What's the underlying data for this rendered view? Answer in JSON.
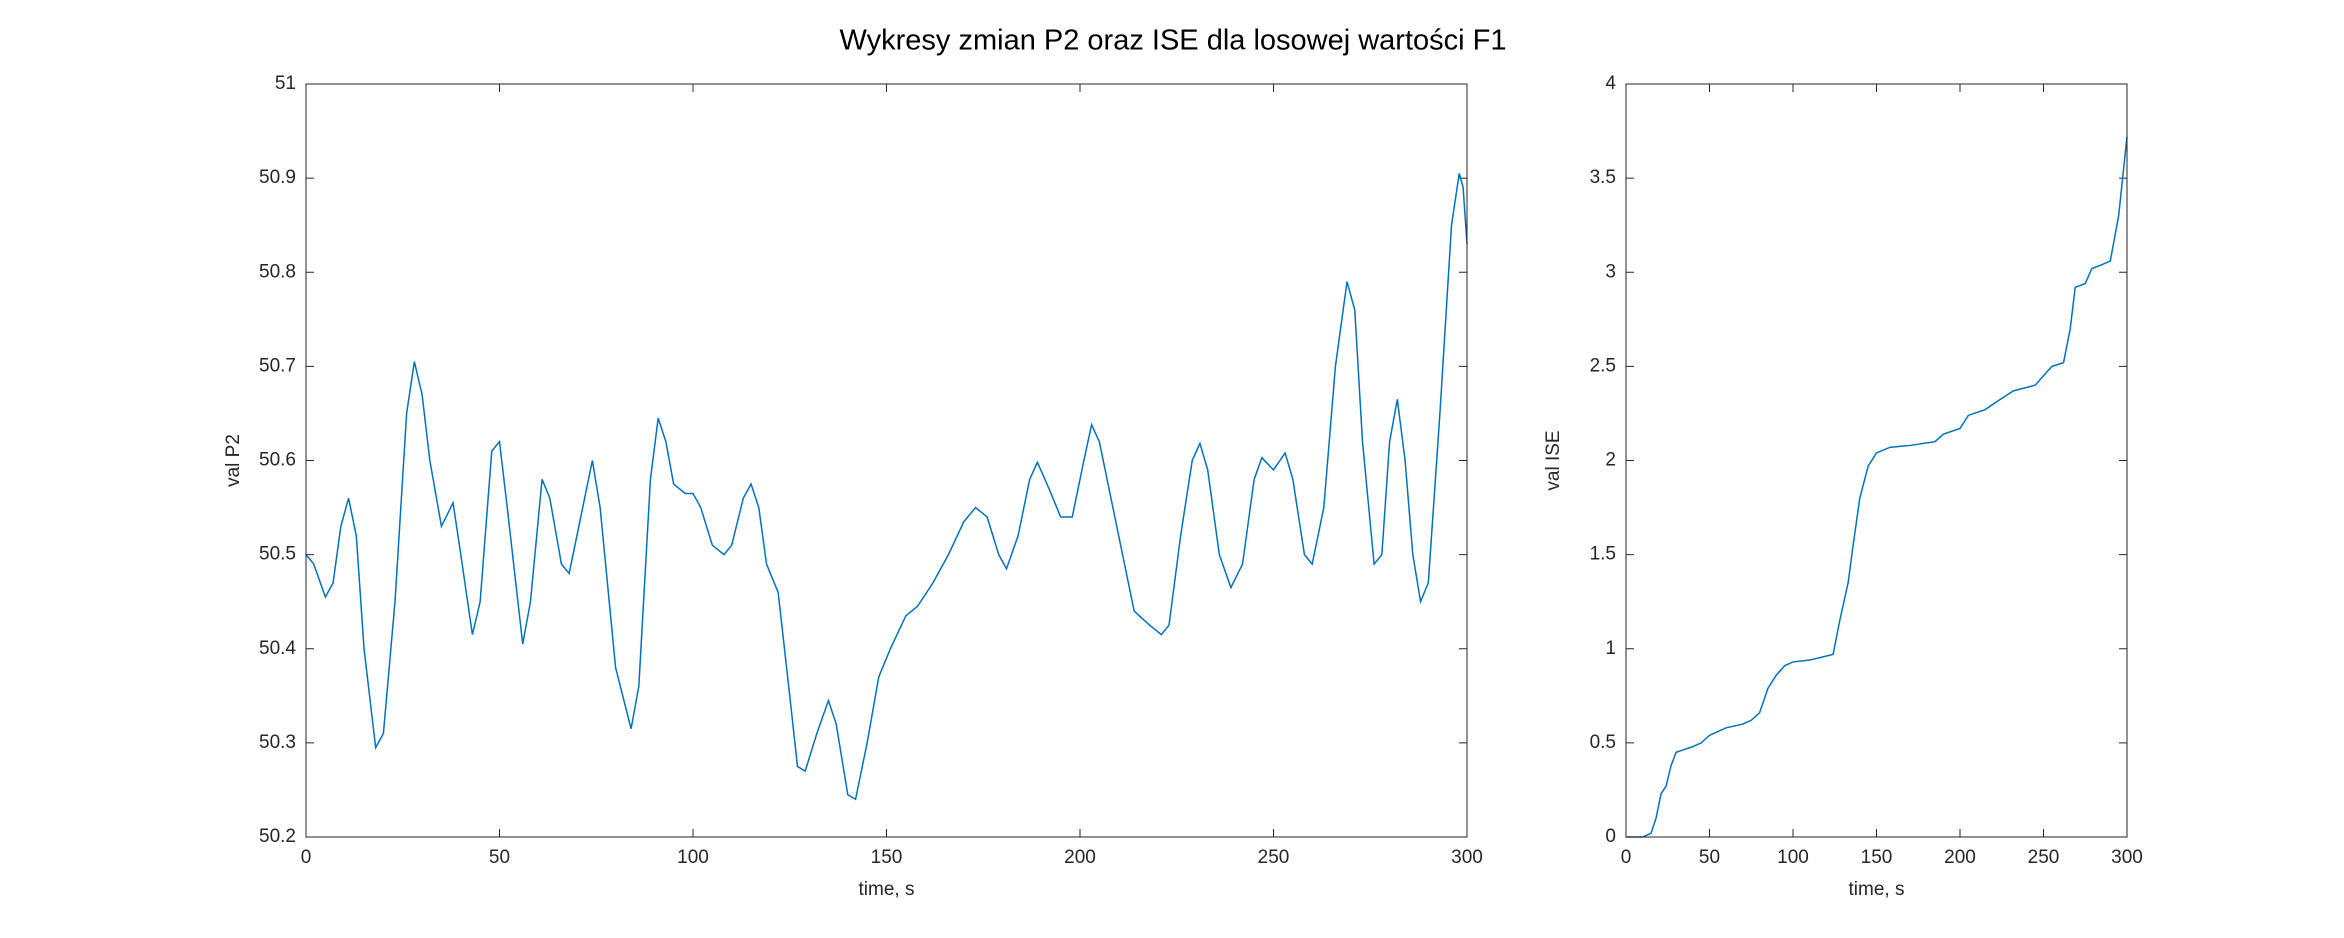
{
  "title": "Wykresy zmian P2 oraz ISE dla losowej wartości F1",
  "chart_data": [
    {
      "type": "line",
      "xlabel": "time, s",
      "ylabel": "val P2",
      "xlim": [
        0,
        300
      ],
      "ylim": [
        50.2,
        51
      ],
      "xticks": [
        0,
        50,
        100,
        150,
        200,
        250,
        300
      ],
      "yticks": [
        50.2,
        50.3,
        50.4,
        50.5,
        50.6,
        50.7,
        50.8,
        50.9,
        51
      ],
      "series": [
        {
          "color": "#0072bd",
          "x": [
            0,
            2,
            5,
            7,
            9,
            11,
            13,
            15,
            18,
            20,
            23,
            26,
            28,
            30,
            32,
            35,
            38,
            40,
            43,
            45,
            48,
            50,
            52,
            56,
            58,
            61,
            63,
            66,
            68,
            70,
            74,
            76,
            80,
            84,
            86,
            89,
            91,
            93,
            95,
            98,
            100,
            102,
            105,
            108,
            110,
            113,
            115,
            117,
            119,
            122,
            125,
            127,
            129,
            132,
            135,
            137,
            140,
            142,
            145,
            148,
            151,
            155,
            158,
            162,
            166,
            170,
            173,
            176,
            179,
            181,
            184,
            187,
            189,
            192,
            195,
            198,
            201,
            203,
            205,
            208,
            211,
            214,
            218,
            221,
            223,
            226,
            229,
            231,
            233,
            236,
            239,
            242,
            245,
            247,
            250,
            253,
            255,
            258,
            260,
            263,
            266,
            269,
            271,
            273,
            276,
            278,
            280,
            282,
            284,
            286,
            288,
            290,
            293,
            296,
            298,
            299,
            300
          ],
          "values": [
            50.5,
            50.49,
            50.455,
            50.47,
            50.53,
            50.56,
            50.52,
            50.4,
            50.295,
            50.31,
            50.45,
            50.65,
            50.705,
            50.67,
            50.6,
            50.53,
            50.555,
            50.5,
            50.415,
            50.45,
            50.61,
            50.62,
            50.55,
            50.405,
            50.45,
            50.58,
            50.56,
            50.49,
            50.48,
            50.52,
            50.6,
            50.55,
            50.38,
            50.315,
            50.36,
            50.58,
            50.645,
            50.62,
            50.575,
            50.565,
            50.565,
            50.55,
            50.51,
            50.5,
            50.51,
            50.56,
            50.575,
            50.55,
            50.49,
            50.46,
            50.35,
            50.275,
            50.27,
            50.31,
            50.345,
            50.32,
            50.245,
            50.24,
            50.3,
            50.37,
            50.4,
            50.435,
            50.445,
            50.47,
            50.5,
            50.535,
            50.55,
            50.54,
            50.5,
            50.485,
            50.52,
            50.58,
            50.598,
            50.57,
            50.54,
            50.54,
            50.6,
            50.638,
            50.62,
            50.56,
            50.5,
            50.44,
            50.425,
            50.415,
            50.425,
            50.52,
            50.6,
            50.618,
            50.59,
            50.5,
            50.465,
            50.49,
            50.58,
            50.603,
            50.59,
            50.608,
            50.58,
            50.5,
            50.49,
            50.55,
            50.7,
            50.79,
            50.76,
            50.62,
            50.49,
            50.5,
            50.62,
            50.665,
            50.6,
            50.5,
            50.45,
            50.47,
            50.65,
            50.85,
            50.905,
            50.89,
            50.83
          ]
        }
      ]
    },
    {
      "type": "line",
      "xlabel": "time, s",
      "ylabel": "val ISE",
      "xlim": [
        0,
        300
      ],
      "ylim": [
        0,
        4
      ],
      "xticks": [
        0,
        50,
        100,
        150,
        200,
        250,
        300
      ],
      "yticks": [
        0,
        0.5,
        1,
        1.5,
        2,
        2.5,
        3,
        3.5,
        4
      ],
      "series": [
        {
          "color": "#0072bd",
          "x": [
            0,
            10,
            15,
            18,
            21,
            24,
            27,
            30,
            40,
            45,
            50,
            60,
            70,
            75,
            80,
            85,
            90,
            95,
            100,
            110,
            115,
            124,
            128,
            133,
            136,
            140,
            145,
            150,
            158,
            170,
            185,
            190,
            200,
            205,
            215,
            225,
            232,
            245,
            255,
            262,
            266,
            269,
            275,
            279,
            285,
            290,
            295,
            300
          ],
          "values": [
            0,
            0,
            0.02,
            0.1,
            0.23,
            0.27,
            0.38,
            0.45,
            0.48,
            0.5,
            0.54,
            0.58,
            0.6,
            0.62,
            0.66,
            0.79,
            0.86,
            0.91,
            0.93,
            0.94,
            0.95,
            0.97,
            1.15,
            1.35,
            1.55,
            1.8,
            1.97,
            2.04,
            2.07,
            2.08,
            2.1,
            2.14,
            2.17,
            2.24,
            2.27,
            2.33,
            2.37,
            2.4,
            2.5,
            2.52,
            2.7,
            2.92,
            2.94,
            3.02,
            3.04,
            3.06,
            3.3,
            3.72
          ]
        }
      ]
    }
  ]
}
